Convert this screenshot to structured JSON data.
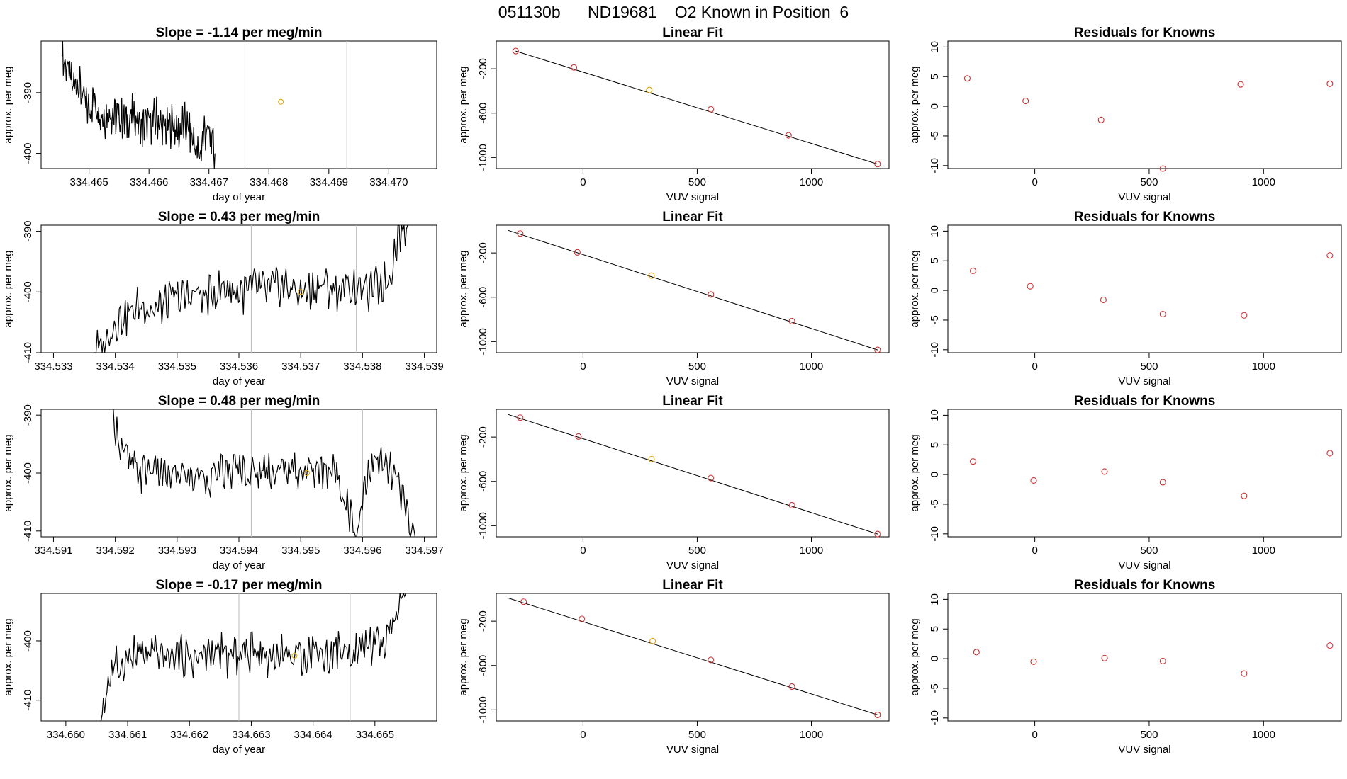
{
  "title": "051130b      ND19681    O2 Known in Position  6",
  "colors": {
    "line": "#000000",
    "known_pt": "#cd3333",
    "sample_pt": "#e0a000",
    "vline": "#bbbbbb"
  },
  "chart_data": [
    {
      "type": "line",
      "panel": "timeseries",
      "row": 0,
      "title": "Slope =  -1.14  per meg/min",
      "xlabel": "day of year",
      "ylabel": "approx. per meg",
      "xlim": [
        334.4642,
        334.4708
      ],
      "ylim": [
        -402.5,
        -381.5
      ],
      "xticks": [
        "334.465",
        "334.466",
        "334.467",
        "334.468",
        "334.469",
        "334.470"
      ],
      "yticks": [
        -400,
        -390
      ],
      "vlines": [
        334.4676,
        334.4693
      ],
      "marker": {
        "x": 334.4682,
        "y": -391.5
      },
      "series": {
        "x0": 334.46455,
        "x1": 334.4671,
        "base": [
          -384,
          -386,
          -389,
          -388,
          -391,
          -393,
          -391,
          -393,
          -394,
          -393,
          -394,
          -394,
          -395,
          -394,
          -394,
          -396,
          -395,
          -395,
          -394,
          -396,
          -396,
          -395,
          -397,
          -395,
          -396,
          -398,
          -401,
          -396,
          -397,
          -400
        ],
        "clipMax": -381.5,
        "clipMin": -402.5
      }
    },
    {
      "type": "scatter",
      "panel": "linear-fit",
      "row": 0,
      "title": "Linear Fit",
      "xlabel": "VUV signal",
      "ylabel": "approx. per meg",
      "xlim": [
        -380,
        1340
      ],
      "ylim": [
        -1100,
        50
      ],
      "xticks": [
        0,
        500,
        1000
      ],
      "yticks": [
        -200,
        -600,
        -1000
      ],
      "points": [
        {
          "x": -295,
          "y": -40
        },
        {
          "x": -40,
          "y": -188
        },
        {
          "x": 290,
          "y": -392,
          "sample": true
        },
        {
          "x": 560,
          "y": -565
        },
        {
          "x": 900,
          "y": -800
        },
        {
          "x": 1290,
          "y": -1060
        }
      ],
      "fit": [
        {
          "x": -295,
          "y": -40
        },
        {
          "x": 1290,
          "y": -1060
        }
      ]
    },
    {
      "type": "scatter",
      "panel": "residuals",
      "row": 0,
      "title": "Residuals for Knowns",
      "xlabel": "VUV signal",
      "ylabel": "approx. per meg",
      "xlim": [
        -380,
        1340
      ],
      "ylim": [
        -10.5,
        11
      ],
      "xticks": [
        0,
        500,
        1000
      ],
      "yticks": [
        10,
        5,
        0,
        -5,
        -10
      ],
      "points": [
        {
          "x": -295,
          "y": 4.7
        },
        {
          "x": -40,
          "y": 0.9
        },
        {
          "x": 290,
          "y": -2.3
        },
        {
          "x": 560,
          "y": -10.6
        },
        {
          "x": 900,
          "y": 3.7
        },
        {
          "x": 1290,
          "y": 3.8
        }
      ]
    },
    {
      "type": "line",
      "panel": "timeseries",
      "row": 1,
      "title": "Slope =  0.43  per meg/min",
      "xlabel": "day of year",
      "ylabel": "approx. per meg",
      "xlim": [
        334.5328,
        334.5392
      ],
      "ylim": [
        -410,
        -389
      ],
      "xticks": [
        "334.533",
        "334.534",
        "334.535",
        "334.536",
        "334.537",
        "334.538",
        "334.539"
      ],
      "yticks": [
        -410,
        -400,
        -390
      ],
      "vlines": [
        334.5362,
        334.5379
      ],
      "marker": {
        "x": 334.537,
        "y": -400
      },
      "series": {
        "x0": 334.53365,
        "x1": 334.53875,
        "base": [
          -410,
          -409,
          -405,
          -404,
          -403,
          -402,
          -403,
          -402,
          -401,
          -401,
          -400,
          -401,
          -400,
          -399,
          -400,
          -400,
          -399,
          -400,
          -399,
          -399,
          -400,
          -400,
          -399,
          -399,
          -400,
          -399,
          -399,
          -400,
          -399,
          -398,
          -390,
          -389
        ],
        "clipMax": -389,
        "clipMin": -410
      }
    },
    {
      "type": "scatter",
      "panel": "linear-fit",
      "row": 1,
      "title": "Linear Fit",
      "xlabel": "VUV signal",
      "ylabel": "approx. per meg",
      "xlim": [
        -380,
        1340
      ],
      "ylim": [
        -1100,
        50
      ],
      "xticks": [
        0,
        500,
        1000
      ],
      "yticks": [
        -200,
        -600,
        -1000
      ],
      "points": [
        {
          "x": -275,
          "y": -25
        },
        {
          "x": -25,
          "y": -195
        },
        {
          "x": 300,
          "y": -405,
          "sample": true
        },
        {
          "x": 560,
          "y": -575
        },
        {
          "x": 915,
          "y": -815
        },
        {
          "x": 1290,
          "y": -1075
        }
      ],
      "fit": [
        {
          "x": -330,
          "y": 5
        },
        {
          "x": 1290,
          "y": -1075
        }
      ]
    },
    {
      "type": "scatter",
      "panel": "residuals",
      "row": 1,
      "title": "Residuals for Knowns",
      "xlabel": "VUV signal",
      "ylabel": "approx. per meg",
      "xlim": [
        -380,
        1340
      ],
      "ylim": [
        -10.5,
        11
      ],
      "xticks": [
        0,
        500,
        1000
      ],
      "yticks": [
        10,
        5,
        0,
        -5,
        -10
      ],
      "points": [
        {
          "x": -270,
          "y": 3.3
        },
        {
          "x": -20,
          "y": 0.7
        },
        {
          "x": 300,
          "y": -1.6
        },
        {
          "x": 560,
          "y": -4.0
        },
        {
          "x": 915,
          "y": -4.2
        },
        {
          "x": 1290,
          "y": 5.9
        }
      ]
    },
    {
      "type": "line",
      "panel": "timeseries",
      "row": 2,
      "title": "Slope =  0.48  per meg/min",
      "xlabel": "day of year",
      "ylabel": "approx. per meg",
      "xlim": [
        334.5908,
        334.5972
      ],
      "ylim": [
        -411,
        -389
      ],
      "xticks": [
        "334.591",
        "334.592",
        "334.593",
        "334.594",
        "334.595",
        "334.596",
        "334.597"
      ],
      "yticks": [
        -410,
        -400,
        -390
      ],
      "vlines": [
        334.5942,
        334.596
      ],
      "marker": {
        "x": 334.5951,
        "y": -400
      },
      "series": {
        "x0": 334.59195,
        "x1": 334.59685,
        "base": [
          -389,
          -396,
          -399,
          -400,
          -399,
          -400,
          -401,
          -400,
          -401,
          -400,
          -401,
          -400,
          -400,
          -399,
          -400,
          -400,
          -399,
          -400,
          -399,
          -400,
          -399,
          -400,
          -399,
          -400,
          -405,
          -411,
          -400,
          -398,
          -399,
          -401,
          -406,
          -411
        ],
        "clipMax": -389,
        "clipMin": -411
      }
    },
    {
      "type": "scatter",
      "panel": "linear-fit",
      "row": 2,
      "title": "Linear Fit",
      "xlabel": "VUV signal",
      "ylabel": "approx. per meg",
      "xlim": [
        -380,
        1340
      ],
      "ylim": [
        -1100,
        50
      ],
      "xticks": [
        0,
        500,
        1000
      ],
      "yticks": [
        -200,
        -600,
        -1000
      ],
      "points": [
        {
          "x": -275,
          "y": -25
        },
        {
          "x": -20,
          "y": -195
        },
        {
          "x": 300,
          "y": -400,
          "sample": true
        },
        {
          "x": 560,
          "y": -570
        },
        {
          "x": 915,
          "y": -815
        },
        {
          "x": 1290,
          "y": -1075
        }
      ],
      "fit": [
        {
          "x": -330,
          "y": 5
        },
        {
          "x": 1290,
          "y": -1075
        }
      ]
    },
    {
      "type": "scatter",
      "panel": "residuals",
      "row": 2,
      "title": "Residuals for Knowns",
      "xlabel": "VUV signal",
      "ylabel": "approx. per meg",
      "xlim": [
        -380,
        1340
      ],
      "ylim": [
        -10.5,
        11
      ],
      "xticks": [
        0,
        500,
        1000
      ],
      "yticks": [
        10,
        5,
        0,
        -5,
        -10
      ],
      "points": [
        {
          "x": -270,
          "y": 2.2
        },
        {
          "x": -5,
          "y": -1.0
        },
        {
          "x": 305,
          "y": 0.5
        },
        {
          "x": 560,
          "y": -1.3
        },
        {
          "x": 915,
          "y": -3.6
        },
        {
          "x": 1290,
          "y": 3.6
        }
      ]
    },
    {
      "type": "line",
      "panel": "timeseries",
      "row": 3,
      "title": "Slope =  -0.17  per meg/min",
      "xlabel": "day of year",
      "ylabel": "approx. per meg",
      "xlim": [
        334.6596,
        334.666
      ],
      "ylim": [
        -413.5,
        -392
      ],
      "xticks": [
        "334.660",
        "334.661",
        "334.662",
        "334.663",
        "334.664",
        "334.665"
      ],
      "yticks": [
        -410,
        -400
      ],
      "vlines": [
        334.6628,
        334.6646
      ],
      "marker": {
        "x": 334.6637,
        "y": -402.5
      },
      "series": {
        "x0": 334.66055,
        "x1": 334.6655,
        "base": [
          -413.5,
          -406,
          -404,
          -403,
          -402,
          -403,
          -402,
          -403,
          -402,
          -403,
          -403,
          -402,
          -402,
          -403,
          -402,
          -402,
          -401,
          -403,
          -402,
          -402,
          -403,
          -402,
          -401,
          -403,
          -401,
          -402,
          -402,
          -401,
          -400,
          -401,
          -396,
          -392
        ],
        "clipMax": -392,
        "clipMin": -413.5
      }
    },
    {
      "type": "scatter",
      "panel": "linear-fit",
      "row": 3,
      "title": "Linear Fit",
      "xlabel": "VUV signal",
      "ylabel": "approx. per meg",
      "xlim": [
        -380,
        1340
      ],
      "ylim": [
        -1100,
        50
      ],
      "xticks": [
        0,
        500,
        1000
      ],
      "yticks": [
        -200,
        -600,
        -1000
      ],
      "points": [
        {
          "x": -260,
          "y": -25
        },
        {
          "x": -5,
          "y": -180
        },
        {
          "x": 305,
          "y": -380,
          "sample": true
        },
        {
          "x": 560,
          "y": -550
        },
        {
          "x": 915,
          "y": -790
        },
        {
          "x": 1290,
          "y": -1045
        }
      ],
      "fit": [
        {
          "x": -330,
          "y": 10
        },
        {
          "x": 1290,
          "y": -1045
        }
      ]
    },
    {
      "type": "scatter",
      "panel": "residuals",
      "row": 3,
      "title": "Residuals for Knowns",
      "xlabel": "VUV signal",
      "ylabel": "approx. per meg",
      "xlim": [
        -380,
        1340
      ],
      "ylim": [
        -10.5,
        11
      ],
      "xticks": [
        0,
        500,
        1000
      ],
      "yticks": [
        10,
        5,
        0,
        -5,
        -10
      ],
      "points": [
        {
          "x": -255,
          "y": 1.1
        },
        {
          "x": -5,
          "y": -0.5
        },
        {
          "x": 305,
          "y": 0.1
        },
        {
          "x": 560,
          "y": -0.4
        },
        {
          "x": 915,
          "y": -2.5
        },
        {
          "x": 1290,
          "y": 2.2
        }
      ]
    }
  ]
}
